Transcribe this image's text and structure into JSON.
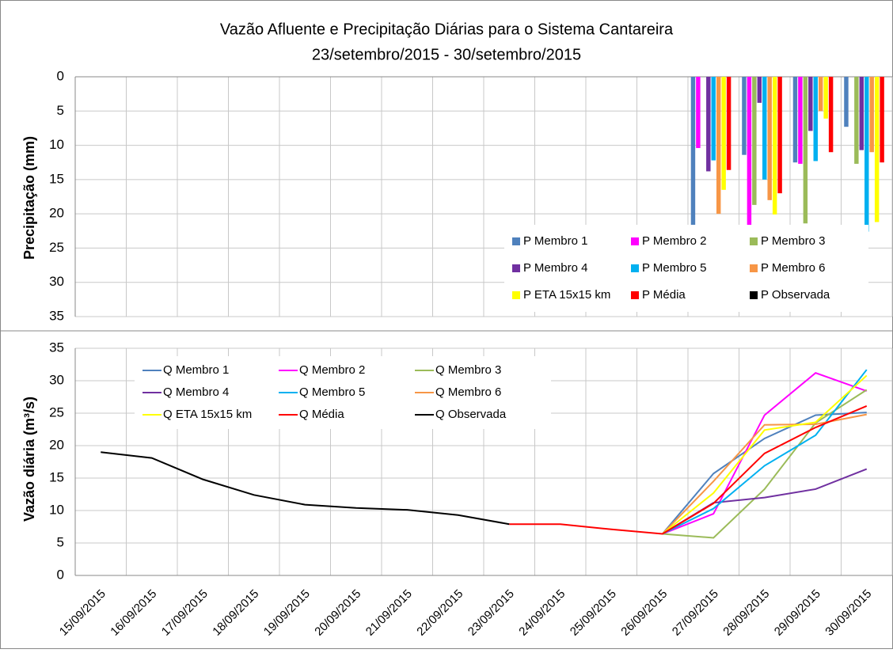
{
  "chart_data": [
    {
      "type": "bar",
      "title": "Vazão Afluente e Precipitação Diárias para o Sistema Cantareira",
      "subtitle": "23/setembro/2015 - 30/setembro/2015",
      "y_label": "Precipitação (mm)",
      "ylim": [
        0,
        35
      ],
      "yticks": [
        0,
        5,
        10,
        15,
        20,
        25,
        30,
        35
      ],
      "y_reversed": true,
      "grid": true,
      "legend": "bottom-right",
      "series": [
        {
          "name": "P Membro 1",
          "color": "#4f81bd",
          "values": [
            null,
            null,
            null,
            null,
            null,
            null,
            null,
            null,
            null,
            null,
            null,
            null,
            22.3,
            11.4,
            12.5,
            7.3
          ]
        },
        {
          "name": "P Membro 2",
          "color": "#ff00ff",
          "values": [
            null,
            null,
            null,
            null,
            null,
            null,
            null,
            null,
            null,
            null,
            null,
            null,
            10.4,
            22.6,
            12.7,
            0
          ]
        },
        {
          "name": "P Membro 3",
          "color": "#9bbb59",
          "values": [
            null,
            null,
            null,
            null,
            null,
            null,
            null,
            null,
            null,
            null,
            null,
            null,
            0,
            18.7,
            21.4,
            12.7
          ]
        },
        {
          "name": "P Membro 4",
          "color": "#7030a0",
          "values": [
            null,
            null,
            null,
            null,
            null,
            null,
            null,
            null,
            null,
            null,
            null,
            null,
            13.8,
            3.8,
            7.9,
            10.7
          ]
        },
        {
          "name": "P Membro 5",
          "color": "#00b0f0",
          "values": [
            null,
            null,
            null,
            null,
            null,
            null,
            null,
            null,
            null,
            null,
            null,
            null,
            12.2,
            15,
            12.3,
            22.6
          ]
        },
        {
          "name": "P Membro 6",
          "color": "#f79646",
          "values": [
            null,
            null,
            null,
            null,
            null,
            null,
            null,
            null,
            null,
            null,
            null,
            null,
            20,
            18,
            5,
            11
          ]
        },
        {
          "name": "P ETA 15x15 km",
          "color": "#ffff00",
          "values": [
            null,
            null,
            null,
            null,
            null,
            null,
            null,
            null,
            null,
            null,
            null,
            null,
            16.5,
            20.1,
            6.1,
            21.2
          ]
        },
        {
          "name": "P Média",
          "color": "#ff0000",
          "values": [
            null,
            null,
            null,
            null,
            null,
            null,
            null,
            null,
            null,
            null,
            null,
            null,
            13.6,
            17,
            11,
            12.5
          ]
        },
        {
          "name": "P Observada",
          "color": "#000000",
          "values": [
            null,
            null,
            null,
            null,
            null,
            null,
            null,
            null,
            null,
            null,
            null,
            null,
            null,
            null,
            null,
            null
          ]
        }
      ]
    },
    {
      "type": "line",
      "y_label": "Vazão diária (m³/s)",
      "categories": [
        "15/09/2015",
        "16/09/2015",
        "17/09/2015",
        "18/09/2015",
        "19/09/2015",
        "20/09/2015",
        "21/09/2015",
        "22/09/2015",
        "23/09/2015",
        "24/09/2015",
        "25/09/2015",
        "26/09/2015",
        "27/09/2015",
        "28/09/2015",
        "29/09/2015",
        "30/09/2015"
      ],
      "ylim": [
        0,
        35
      ],
      "yticks": [
        0,
        5,
        10,
        15,
        20,
        25,
        30,
        35
      ],
      "grid": true,
      "legend": "top-left",
      "series": [
        {
          "name": "Q Membro 1",
          "color": "#4f81bd",
          "values": [
            null,
            null,
            null,
            null,
            null,
            null,
            null,
            null,
            null,
            null,
            null,
            6.4,
            15.7,
            21.1,
            24.7,
            25.1
          ]
        },
        {
          "name": "Q Membro 2",
          "color": "#ff00ff",
          "values": [
            null,
            null,
            null,
            null,
            null,
            null,
            null,
            null,
            null,
            null,
            null,
            6.4,
            9.5,
            24.7,
            31.2,
            28.4
          ]
        },
        {
          "name": "Q Membro 3",
          "color": "#9bbb59",
          "values": [
            null,
            null,
            null,
            null,
            null,
            null,
            null,
            null,
            null,
            null,
            null,
            6.4,
            5.8,
            13.3,
            23.5,
            28.6
          ]
        },
        {
          "name": "Q Membro 4",
          "color": "#7030a0",
          "values": [
            null,
            null,
            null,
            null,
            null,
            null,
            null,
            null,
            null,
            null,
            null,
            6.4,
            11.2,
            12.0,
            13.3,
            16.4
          ]
        },
        {
          "name": "Q Membro 5",
          "color": "#00b0f0",
          "values": [
            null,
            null,
            null,
            null,
            null,
            null,
            null,
            null,
            null,
            null,
            null,
            6.4,
            10.3,
            16.9,
            21.6,
            31.7
          ]
        },
        {
          "name": "Q Membro 6",
          "color": "#f79646",
          "values": [
            null,
            null,
            null,
            null,
            null,
            null,
            null,
            null,
            null,
            null,
            null,
            6.4,
            14.5,
            23.2,
            23.3,
            24.8
          ]
        },
        {
          "name": "Q ETA 15x15 km",
          "color": "#ffff00",
          "values": [
            null,
            null,
            null,
            null,
            null,
            null,
            null,
            null,
            null,
            null,
            null,
            6.4,
            12.7,
            22.4,
            23.6,
            30.8
          ]
        },
        {
          "name": "Q Média",
          "color": "#ff0000",
          "values": [
            null,
            null,
            null,
            null,
            null,
            null,
            null,
            null,
            7.9,
            7.9,
            7.1,
            6.4,
            11.1,
            18.8,
            22.8,
            26.1
          ]
        },
        {
          "name": "Q Observada",
          "color": "#000000",
          "values": [
            19,
            18.1,
            14.8,
            12.4,
            10.9,
            10.4,
            10.1,
            9.3,
            7.9,
            null,
            null,
            null,
            null,
            null,
            null,
            null
          ]
        }
      ]
    }
  ]
}
